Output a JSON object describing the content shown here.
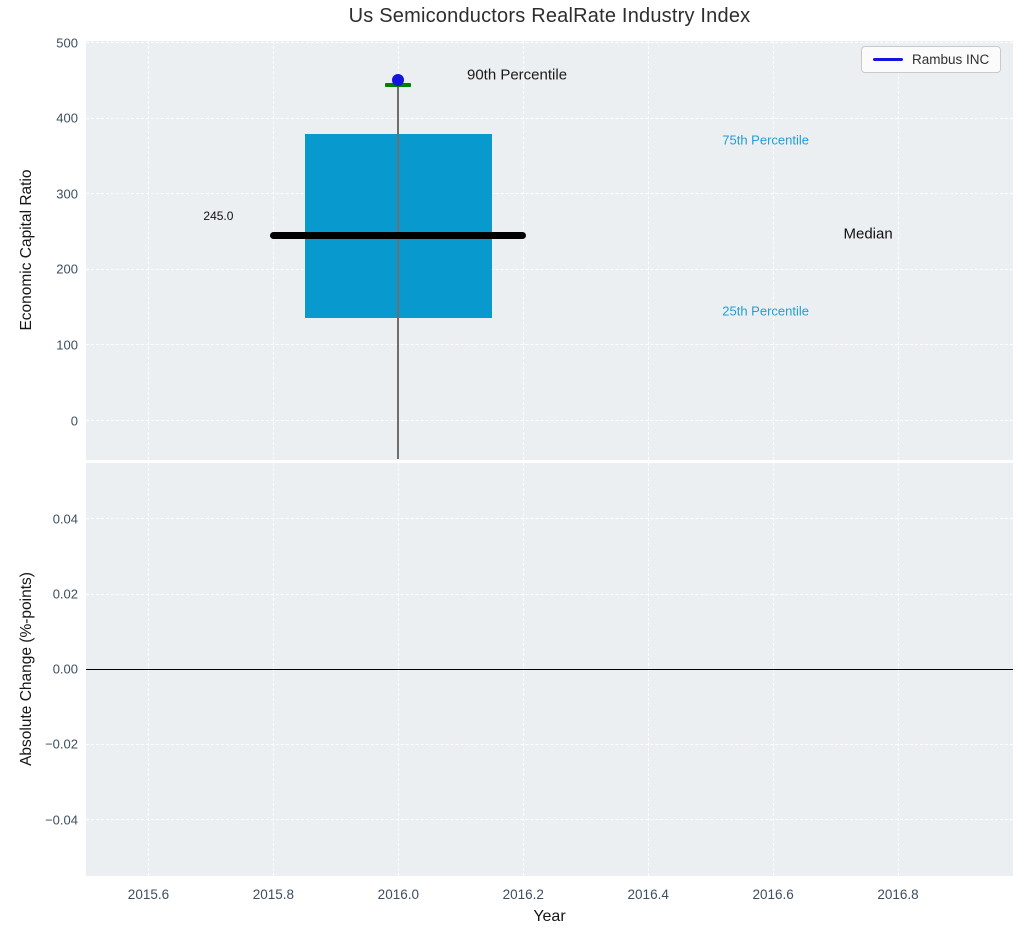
{
  "title": "Us Semiconductors RealRate Industry Index",
  "legend": {
    "label": "Rambus INC",
    "position": "upper right"
  },
  "colors": {
    "axes_background": "#eceff1",
    "grid_line": "#ffffff",
    "tick_label": "#3e4e60",
    "box_fill": "#0899ce",
    "percentile_label": "#209fd6",
    "median_line": "#000000",
    "p90_cap": "#008000",
    "whisker": "#6e6e6e",
    "company_marker": "#1414e0",
    "legend_line": "#1414e0",
    "zero_line": "#000000"
  },
  "chart_data": [
    {
      "type": "box",
      "title": "Us Semiconductors RealRate Industry Index",
      "ylabel": "Economic Capital Ratio",
      "xlim": [
        2015.5,
        2016.984
      ],
      "ylim": [
        -51.5,
        502
      ],
      "grid": true,
      "legend_entries": [
        "Rambus INC"
      ],
      "xticks": {
        "values": [
          2015.6,
          2015.8,
          2016.0,
          2016.2,
          2016.4,
          2016.6,
          2016.8
        ],
        "labels": [
          "2015.6",
          "2015.8",
          "2016.0",
          "2016.2",
          "2016.4",
          "2016.6",
          "2016.8"
        ]
      },
      "yticks": {
        "values": [
          0,
          100,
          200,
          300,
          400,
          500
        ],
        "labels": [
          "0",
          "100",
          "200",
          "300",
          "400",
          "500"
        ]
      },
      "box": {
        "x": 2016.0,
        "half_width": 0.15,
        "q1": 136,
        "median": 245.0,
        "q3": 379,
        "p90": 444,
        "median_line_half_width": 0.205,
        "p90_cap_half_width": 0.021,
        "whisker_low_clip": -51.5
      },
      "company_point": {
        "name": "Rambus INC",
        "x": 2016.0,
        "y": 450
      },
      "annotations": [
        {
          "text": "90th Percentile",
          "x": 2016.19,
          "y": 457,
          "color": "#1a1a1a",
          "size": 15
        },
        {
          "text": "245.0",
          "x": 2015.712,
          "y": 270,
          "color": "#111111",
          "size": 12
        },
        {
          "text": "75th Percentile",
          "x": 2016.588,
          "y": 371,
          "color": "#209fd6",
          "size": 13
        },
        {
          "text": "Median",
          "x": 2016.752,
          "y": 247,
          "color": "#111111",
          "size": 15
        },
        {
          "text": "25th Percentile",
          "x": 2016.588,
          "y": 145,
          "color": "#209fd6",
          "size": 13
        }
      ]
    },
    {
      "type": "line",
      "ylabel": "Absolute Change (%-points)",
      "xlabel": "Year",
      "xlim": [
        2015.5,
        2016.984
      ],
      "ylim": [
        -0.055,
        0.055
      ],
      "grid": true,
      "xticks": {
        "values": [
          2015.6,
          2015.8,
          2016.0,
          2016.2,
          2016.4,
          2016.6,
          2016.8
        ],
        "labels": [
          "2015.6",
          "2015.8",
          "2016.0",
          "2016.2",
          "2016.4",
          "2016.6",
          "2016.8"
        ]
      },
      "yticks": {
        "values": [
          -0.04,
          -0.02,
          0.0,
          0.02,
          0.04
        ],
        "labels": [
          "−0.04",
          "−0.02",
          "0.00",
          "0.02",
          "0.04"
        ]
      },
      "zero_line": 0.0,
      "series": []
    }
  ]
}
